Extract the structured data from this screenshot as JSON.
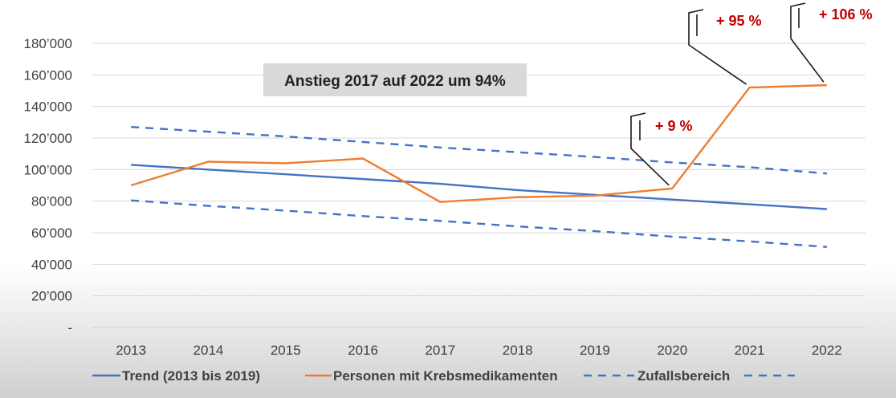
{
  "chart_data": {
    "type": "line",
    "x": [
      "2013",
      "2014",
      "2015",
      "2016",
      "2017",
      "2018",
      "2019",
      "2020",
      "2021",
      "2022"
    ],
    "ylim": [
      0,
      180000
    ],
    "yticks": [
      0,
      20000,
      40000,
      60000,
      80000,
      100000,
      120000,
      140000,
      160000,
      180000
    ],
    "ytick_labels": [
      "-",
      "20’000",
      "40’000",
      "60’000",
      "80’000",
      "100’000",
      "120’000",
      "140’000",
      "160’000",
      "180’000"
    ],
    "grid": true,
    "legend_position": "bottom",
    "series": [
      {
        "name": "Trend (2013 bis 2019)",
        "style": "solid",
        "color": "#4472c4",
        "values": [
          103000,
          100000,
          97000,
          94000,
          91000,
          87000,
          84000,
          81000,
          78000,
          75000
        ]
      },
      {
        "name": "Personen mit Krebsmedikamenten",
        "style": "solid",
        "color": "#ed7d31",
        "values": [
          90000,
          105000,
          104000,
          107000,
          79500,
          82500,
          83500,
          88000,
          152000,
          153500
        ]
      },
      {
        "name": "Zufallsbereich",
        "style": "dashed",
        "color": "#4472c4",
        "values": [
          127000,
          124000,
          121000,
          117500,
          114000,
          111000,
          108000,
          104500,
          101500,
          97500
        ]
      },
      {
        "name": "",
        "style": "dashed",
        "color": "#4472c4",
        "values": [
          80500,
          77000,
          74000,
          70500,
          67500,
          64000,
          61000,
          57500,
          54500,
          51000
        ]
      }
    ],
    "annotations": [
      {
        "text": "Anstieg 2017 auf 2022 um 94%",
        "kind": "box"
      },
      {
        "text": "+ 9 %",
        "kind": "callout",
        "target_index": 7
      },
      {
        "text": "+ 95 %",
        "kind": "callout",
        "target_index": 8
      },
      {
        "text": "+ 106 %",
        "kind": "callout",
        "target_index": 9
      }
    ]
  }
}
